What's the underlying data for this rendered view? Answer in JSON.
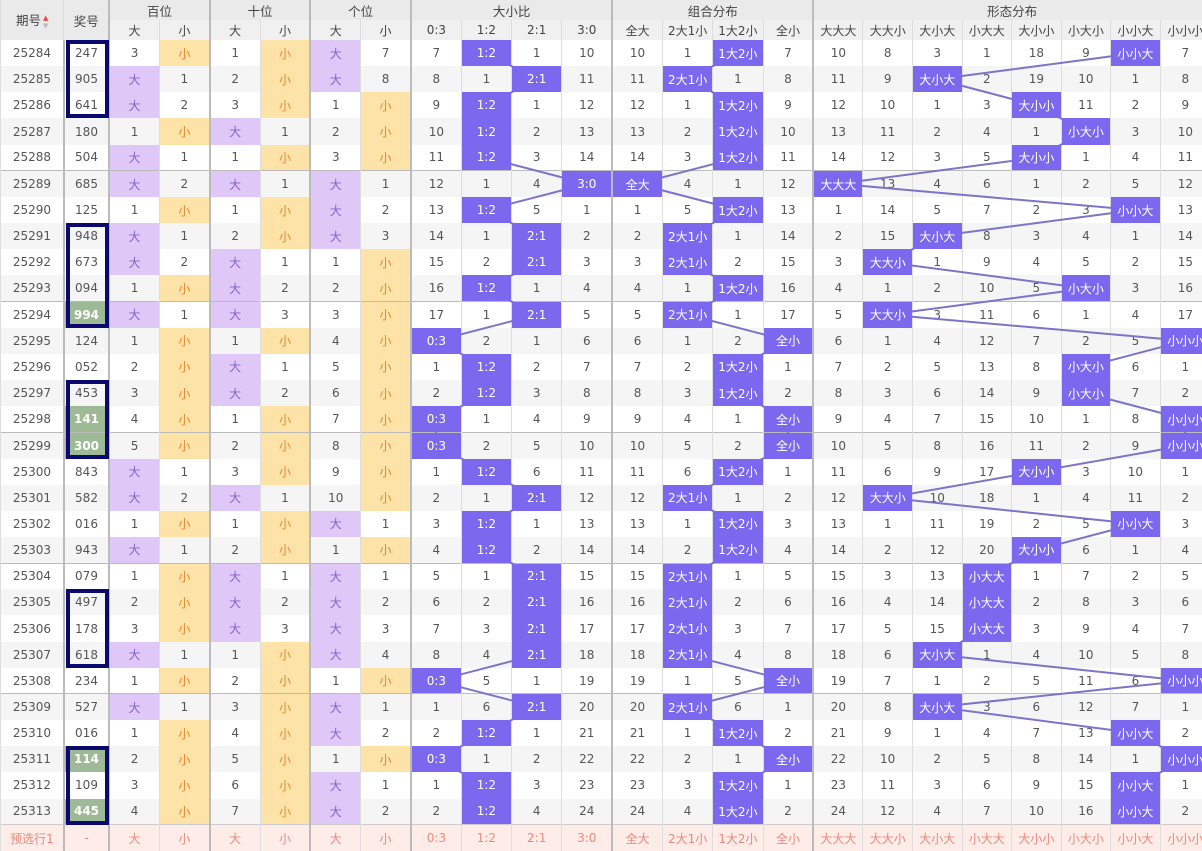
{
  "header": {
    "issue": "期号",
    "prize": "奖号",
    "groups": [
      "百位",
      "十位",
      "个位",
      "大小比",
      "组合分布",
      "形态分布"
    ],
    "sub": [
      "大",
      "小",
      "大",
      "小",
      "大",
      "小",
      "0:3",
      "1:2",
      "2:1",
      "3:0",
      "全大",
      "2大1小",
      "1大2小",
      "全小",
      "大大大",
      "大大小",
      "大小大",
      "小大大",
      "大小小",
      "小大小",
      "小小大",
      "小小小"
    ]
  },
  "colors": {
    "hit": "#7b68ee",
    "big_light": "#dfc8f8",
    "small_light": "#fde3a8",
    "prize_box": "#0a0a6e",
    "prize_green": "#9db995",
    "line": "#7b74c9",
    "footer_bg": "#fdece7",
    "footer_text": "#ea8a7c"
  },
  "icons": {
    "sort": "sort-up-down-icon"
  },
  "rows": [
    [
      "25284",
      "247",
      "3",
      "小",
      "1",
      "小",
      "大",
      "7",
      "7",
      "1:2",
      "1",
      "10",
      "10",
      "1",
      "1大2小",
      "7",
      "10",
      "8",
      "3",
      "1",
      "18",
      "9",
      "小小大",
      "7"
    ],
    [
      "25285",
      "905",
      "大",
      "1",
      "2",
      "小",
      "大",
      "8",
      "8",
      "1",
      "2:1",
      "11",
      "11",
      "2大1小",
      "1",
      "8",
      "11",
      "9",
      "大小大",
      "2",
      "19",
      "10",
      "1",
      "8"
    ],
    [
      "25286",
      "641",
      "大",
      "2",
      "3",
      "小",
      "1",
      "小",
      "9",
      "1:2",
      "1",
      "12",
      "12",
      "1",
      "1大2小",
      "9",
      "12",
      "10",
      "1",
      "3",
      "大小小",
      "11",
      "2",
      "9"
    ],
    [
      "25287",
      "180",
      "1",
      "小",
      "大",
      "1",
      "2",
      "小",
      "10",
      "1:2",
      "2",
      "13",
      "13",
      "2",
      "1大2小",
      "10",
      "13",
      "11",
      "2",
      "4",
      "1",
      "小大小",
      "3",
      "10"
    ],
    [
      "25288",
      "504",
      "大",
      "1",
      "1",
      "小",
      "3",
      "小",
      "11",
      "1:2",
      "3",
      "14",
      "14",
      "3",
      "1大2小",
      "11",
      "14",
      "12",
      "3",
      "5",
      "大小小",
      "1",
      "4",
      "11"
    ],
    [
      "25289",
      "685",
      "大",
      "2",
      "大",
      "1",
      "大",
      "1",
      "12",
      "1",
      "4",
      "3:0",
      "全大",
      "4",
      "1",
      "12",
      "大大大",
      "13",
      "4",
      "6",
      "1",
      "2",
      "5",
      "12"
    ],
    [
      "25290",
      "125",
      "1",
      "小",
      "1",
      "小",
      "大",
      "2",
      "13",
      "1:2",
      "5",
      "1",
      "1",
      "5",
      "1大2小",
      "13",
      "1",
      "14",
      "5",
      "7",
      "2",
      "3",
      "小小大",
      "13"
    ],
    [
      "25291",
      "948",
      "大",
      "1",
      "2",
      "小",
      "大",
      "3",
      "14",
      "1",
      "2:1",
      "2",
      "2",
      "2大1小",
      "1",
      "14",
      "2",
      "15",
      "大小大",
      "8",
      "3",
      "4",
      "1",
      "14"
    ],
    [
      "25292",
      "673",
      "大",
      "2",
      "大",
      "1",
      "1",
      "小",
      "15",
      "2",
      "2:1",
      "3",
      "3",
      "2大1小",
      "2",
      "15",
      "3",
      "大大小",
      "1",
      "9",
      "4",
      "5",
      "2",
      "15"
    ],
    [
      "25293",
      "094",
      "1",
      "小",
      "大",
      "2",
      "2",
      "小",
      "16",
      "1:2",
      "1",
      "4",
      "4",
      "1",
      "1大2小",
      "16",
      "4",
      "1",
      "2",
      "10",
      "5",
      "小大小",
      "3",
      "16"
    ],
    [
      "25294",
      "994",
      "大",
      "1",
      "大",
      "3",
      "3",
      "小",
      "17",
      "1",
      "2:1",
      "5",
      "5",
      "2大1小",
      "1",
      "17",
      "5",
      "大大小",
      "3",
      "11",
      "6",
      "1",
      "4",
      "17"
    ],
    [
      "25295",
      "124",
      "1",
      "小",
      "1",
      "小",
      "4",
      "小",
      "0:3",
      "2",
      "1",
      "6",
      "6",
      "1",
      "2",
      "全小",
      "6",
      "1",
      "4",
      "12",
      "7",
      "2",
      "5",
      "小小小"
    ],
    [
      "25296",
      "052",
      "2",
      "小",
      "大",
      "1",
      "5",
      "小",
      "1",
      "1:2",
      "2",
      "7",
      "7",
      "2",
      "1大2小",
      "1",
      "7",
      "2",
      "5",
      "13",
      "8",
      "小大小",
      "6",
      "1"
    ],
    [
      "25297",
      "453",
      "3",
      "小",
      "大",
      "2",
      "6",
      "小",
      "2",
      "1:2",
      "3",
      "8",
      "8",
      "3",
      "1大2小",
      "2",
      "8",
      "3",
      "6",
      "14",
      "9",
      "小大小",
      "7",
      "2"
    ],
    [
      "25298",
      "141",
      "4",
      "小",
      "1",
      "小",
      "7",
      "小",
      "0:3",
      "1",
      "4",
      "9",
      "9",
      "4",
      "1",
      "全小",
      "9",
      "4",
      "7",
      "15",
      "10",
      "1",
      "8",
      "小小小"
    ],
    [
      "25299",
      "300",
      "5",
      "小",
      "2",
      "小",
      "8",
      "小",
      "0:3",
      "2",
      "5",
      "10",
      "10",
      "5",
      "2",
      "全小",
      "10",
      "5",
      "8",
      "16",
      "11",
      "2",
      "9",
      "小小小"
    ],
    [
      "25300",
      "843",
      "大",
      "1",
      "3",
      "小",
      "9",
      "小",
      "1",
      "1:2",
      "6",
      "11",
      "11",
      "6",
      "1大2小",
      "1",
      "11",
      "6",
      "9",
      "17",
      "大小小",
      "3",
      "10",
      "1"
    ],
    [
      "25301",
      "582",
      "大",
      "2",
      "大",
      "1",
      "10",
      "小",
      "2",
      "1",
      "2:1",
      "12",
      "12",
      "2大1小",
      "1",
      "2",
      "12",
      "大大小",
      "10",
      "18",
      "1",
      "4",
      "11",
      "2"
    ],
    [
      "25302",
      "016",
      "1",
      "小",
      "1",
      "小",
      "大",
      "1",
      "3",
      "1:2",
      "1",
      "13",
      "13",
      "1",
      "1大2小",
      "3",
      "13",
      "1",
      "11",
      "19",
      "2",
      "5",
      "小小大",
      "3"
    ],
    [
      "25303",
      "943",
      "大",
      "1",
      "2",
      "小",
      "1",
      "小",
      "4",
      "1:2",
      "2",
      "14",
      "14",
      "2",
      "1大2小",
      "4",
      "14",
      "2",
      "12",
      "20",
      "大小小",
      "6",
      "1",
      "4"
    ],
    [
      "25304",
      "079",
      "1",
      "小",
      "大",
      "1",
      "大",
      "1",
      "5",
      "1",
      "2:1",
      "15",
      "15",
      "2大1小",
      "1",
      "5",
      "15",
      "3",
      "13",
      "小大大",
      "1",
      "7",
      "2",
      "5"
    ],
    [
      "25305",
      "497",
      "2",
      "小",
      "大",
      "2",
      "大",
      "2",
      "6",
      "2",
      "2:1",
      "16",
      "16",
      "2大1小",
      "2",
      "6",
      "16",
      "4",
      "14",
      "小大大",
      "2",
      "8",
      "3",
      "6"
    ],
    [
      "25306",
      "178",
      "3",
      "小",
      "大",
      "3",
      "大",
      "3",
      "7",
      "3",
      "2:1",
      "17",
      "17",
      "2大1小",
      "3",
      "7",
      "17",
      "5",
      "15",
      "小大大",
      "3",
      "9",
      "4",
      "7"
    ],
    [
      "25307",
      "618",
      "大",
      "1",
      "1",
      "小",
      "大",
      "4",
      "8",
      "4",
      "2:1",
      "18",
      "18",
      "2大1小",
      "4",
      "8",
      "18",
      "6",
      "大小大",
      "1",
      "4",
      "10",
      "5",
      "8"
    ],
    [
      "25308",
      "234",
      "1",
      "小",
      "2",
      "小",
      "1",
      "小",
      "0:3",
      "5",
      "1",
      "19",
      "19",
      "1",
      "5",
      "全小",
      "19",
      "7",
      "1",
      "2",
      "5",
      "11",
      "6",
      "小小小"
    ],
    [
      "25309",
      "527",
      "大",
      "1",
      "3",
      "小",
      "大",
      "1",
      "1",
      "6",
      "2:1",
      "20",
      "20",
      "2大1小",
      "6",
      "1",
      "20",
      "8",
      "大小大",
      "3",
      "6",
      "12",
      "7",
      "1"
    ],
    [
      "25310",
      "016",
      "1",
      "小",
      "4",
      "小",
      "大",
      "2",
      "2",
      "1:2",
      "1",
      "21",
      "21",
      "1",
      "1大2小",
      "2",
      "21",
      "9",
      "1",
      "4",
      "7",
      "13",
      "小小大",
      "2"
    ],
    [
      "25311",
      "114",
      "2",
      "小",
      "5",
      "小",
      "1",
      "小",
      "0:3",
      "1",
      "2",
      "22",
      "22",
      "2",
      "1",
      "全小",
      "22",
      "10",
      "2",
      "5",
      "8",
      "14",
      "1",
      "小小小"
    ],
    [
      "25312",
      "109",
      "3",
      "小",
      "6",
      "小",
      "大",
      "1",
      "1",
      "1:2",
      "3",
      "23",
      "23",
      "3",
      "1大2小",
      "1",
      "23",
      "11",
      "3",
      "6",
      "9",
      "15",
      "小小大",
      "1"
    ],
    [
      "25313",
      "445",
      "4",
      "小",
      "7",
      "小",
      "大",
      "2",
      "2",
      "1:2",
      "4",
      "24",
      "24",
      "4",
      "1大2小",
      "2",
      "24",
      "12",
      "4",
      "7",
      "10",
      "16",
      "小小大",
      "2"
    ]
  ],
  "green_prizes": [
    "994",
    "141",
    "300",
    "114",
    "445"
  ],
  "boxed_groups": [
    [
      "25284",
      "25286"
    ],
    [
      "25291",
      "25294"
    ],
    [
      "25297",
      "25299"
    ],
    [
      "25305",
      "25307"
    ],
    [
      "25311",
      "25313"
    ]
  ],
  "footer": [
    "预选行1",
    "-",
    "大",
    "小",
    "大",
    "小",
    "大",
    "小",
    "0:3",
    "1:2",
    "2:1",
    "3:0",
    "全大",
    "2大1小",
    "1大2小",
    "全小",
    "大大大",
    "大大小",
    "大小大",
    "小大大",
    "大小小",
    "小大小",
    "小小大",
    "小小小"
  ]
}
